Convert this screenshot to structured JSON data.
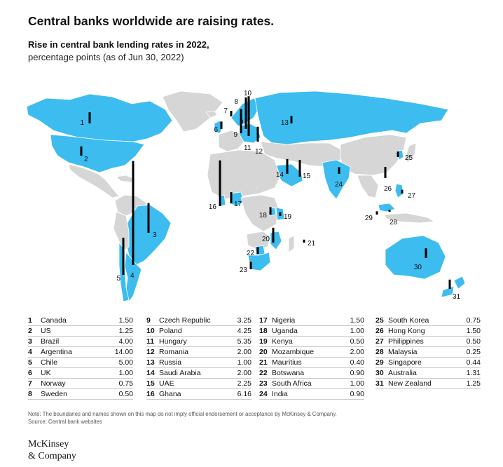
{
  "title": "Central banks worldwide are raising rates.",
  "subtitle": "Rise in central bank lending rates in 2022,",
  "subtitle_units": "percentage points (as of Jun 30, 2022)",
  "colors": {
    "highlight": "#3dbcef",
    "land": "#d6d6d6",
    "bar": "#000000"
  },
  "chart_data": {
    "type": "map",
    "units": "percentage points",
    "entries": [
      {
        "id": "1",
        "country": "Canada",
        "value": 1.5
      },
      {
        "id": "2",
        "country": "US",
        "value": 1.25
      },
      {
        "id": "3",
        "country": "Brazil",
        "value": 4.0
      },
      {
        "id": "4",
        "country": "Argentina",
        "value": 14.0
      },
      {
        "id": "5",
        "country": "Chile",
        "value": 5.0
      },
      {
        "id": "6",
        "country": "UK",
        "value": 1.0
      },
      {
        "id": "7",
        "country": "Norway",
        "value": 0.75
      },
      {
        "id": "8",
        "country": "Sweden",
        "value": 0.5
      },
      {
        "id": "9",
        "country": "Czech Republic",
        "value": 3.25
      },
      {
        "id": "10",
        "country": "Poland",
        "value": 4.25
      },
      {
        "id": "11",
        "country": "Hungary",
        "value": 5.35
      },
      {
        "id": "12",
        "country": "Romania",
        "value": 2.0
      },
      {
        "id": "13",
        "country": "Russia",
        "value": 1.0
      },
      {
        "id": "14",
        "country": "Saudi Arabia",
        "value": 2.0
      },
      {
        "id": "15",
        "country": "UAE",
        "value": 2.25
      },
      {
        "id": "16",
        "country": "Ghana",
        "value": 6.16
      },
      {
        "id": "17",
        "country": "Nigeria",
        "value": 1.5
      },
      {
        "id": "18",
        "country": "Uganda",
        "value": 1.0
      },
      {
        "id": "19",
        "country": "Kenya",
        "value": 0.5
      },
      {
        "id": "20",
        "country": "Mozambique",
        "value": 2.0
      },
      {
        "id": "21",
        "country": "Mauritius",
        "value": 0.4
      },
      {
        "id": "22",
        "country": "Botswana",
        "value": 0.9
      },
      {
        "id": "23",
        "country": "South Africa",
        "value": 1.0
      },
      {
        "id": "24",
        "country": "India",
        "value": 0.9
      },
      {
        "id": "25",
        "country": "South Korea",
        "value": 0.75
      },
      {
        "id": "26",
        "country": "Hong Kong",
        "value": 1.5
      },
      {
        "id": "27",
        "country": "Philippines",
        "value": 0.5
      },
      {
        "id": "28",
        "country": "Malaysia",
        "value": 0.25
      },
      {
        "id": "29",
        "country": "Singapore",
        "value": 0.44
      },
      {
        "id": "30",
        "country": "Australia",
        "value": 1.31
      },
      {
        "id": "31",
        "country": "New Zealand",
        "value": 1.25
      }
    ]
  },
  "legend_values_display": [
    "1.50",
    "1.25",
    "4.00",
    "14.00",
    "5.00",
    "1.00",
    "0.75",
    "0.50",
    "3.25",
    "4.25",
    "5.35",
    "2.00",
    "1.00",
    "2.00",
    "2.25",
    "6.16",
    "1.50",
    "1.00",
    "0.50",
    "2.00",
    "0.40",
    "0.90",
    "1.00",
    "0.90",
    "0.75",
    "1.50",
    "0.50",
    "0.25",
    "0.44",
    "1.31",
    "1.25"
  ],
  "note": "Note: The boundaries and names shown on this map do not imply official endorsement or acceptance by McKinsey & Company.",
  "source": "Source: Central bank websites",
  "logo_line1": "McKinsey",
  "logo_line2": "& Company"
}
